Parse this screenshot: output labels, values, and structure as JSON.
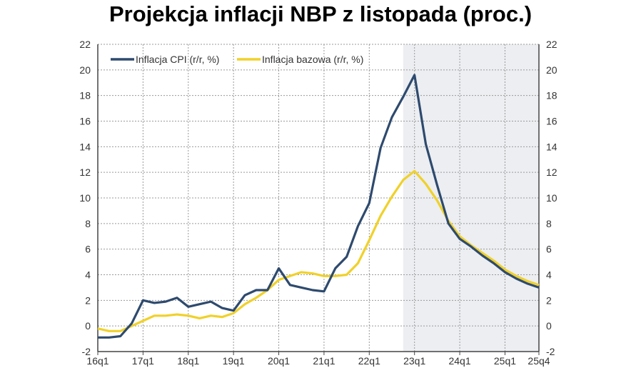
{
  "chart_data": {
    "type": "line",
    "title": "Projekcja inflacji NBP z listopada (proc.)",
    "xlabel": "",
    "ylabel": "",
    "ylim": [
      -2,
      22
    ],
    "yticks": [
      -2,
      0,
      2,
      4,
      6,
      8,
      10,
      12,
      14,
      16,
      18,
      20,
      22
    ],
    "xtick_labels": [
      "16q1",
      "17q1",
      "18q1",
      "19q1",
      "20q1",
      "21q1",
      "22q1",
      "23q1",
      "24q1",
      "25q1",
      "25q4"
    ],
    "x": [
      "16q1",
      "16q2",
      "16q3",
      "16q4",
      "17q1",
      "17q2",
      "17q3",
      "17q4",
      "18q1",
      "18q2",
      "18q3",
      "18q4",
      "19q1",
      "19q2",
      "19q3",
      "19q4",
      "20q1",
      "20q2",
      "20q3",
      "20q4",
      "21q1",
      "21q2",
      "21q3",
      "21q4",
      "22q1",
      "22q2",
      "22q3",
      "22q4",
      "23q1",
      "23q2",
      "23q3",
      "23q4",
      "24q1",
      "24q2",
      "24q3",
      "24q4",
      "25q1",
      "25q2",
      "25q3",
      "25q4"
    ],
    "projection_start": "22q4",
    "grid": true,
    "legend": "top-left",
    "series": [
      {
        "name": "Inflacja CPI (r/r, %)",
        "color": "#2e4a6e",
        "values": [
          -0.9,
          -0.9,
          -0.8,
          0.2,
          2.0,
          1.8,
          1.9,
          2.2,
          1.5,
          1.7,
          1.9,
          1.4,
          1.2,
          2.4,
          2.8,
          2.8,
          4.5,
          3.2,
          3.0,
          2.8,
          2.7,
          4.5,
          5.4,
          7.8,
          9.6,
          13.9,
          16.3,
          17.9,
          19.6,
          14.2,
          11.0,
          8.0,
          6.8,
          6.2,
          5.5,
          4.9,
          4.2,
          3.7,
          3.3,
          3.0
        ]
      },
      {
        "name": "Inflacja bazowa (r/r, %)",
        "color": "#f0d12a",
        "values": [
          -0.2,
          -0.4,
          -0.4,
          0.0,
          0.4,
          0.8,
          0.8,
          0.9,
          0.8,
          0.6,
          0.8,
          0.7,
          1.0,
          1.7,
          2.2,
          2.8,
          3.6,
          3.9,
          4.2,
          4.1,
          3.9,
          3.9,
          4.0,
          4.9,
          6.7,
          8.6,
          10.1,
          11.4,
          12.1,
          11.1,
          9.8,
          8.2,
          7.0,
          6.3,
          5.7,
          5.1,
          4.4,
          3.9,
          3.5,
          3.2
        ]
      }
    ]
  }
}
